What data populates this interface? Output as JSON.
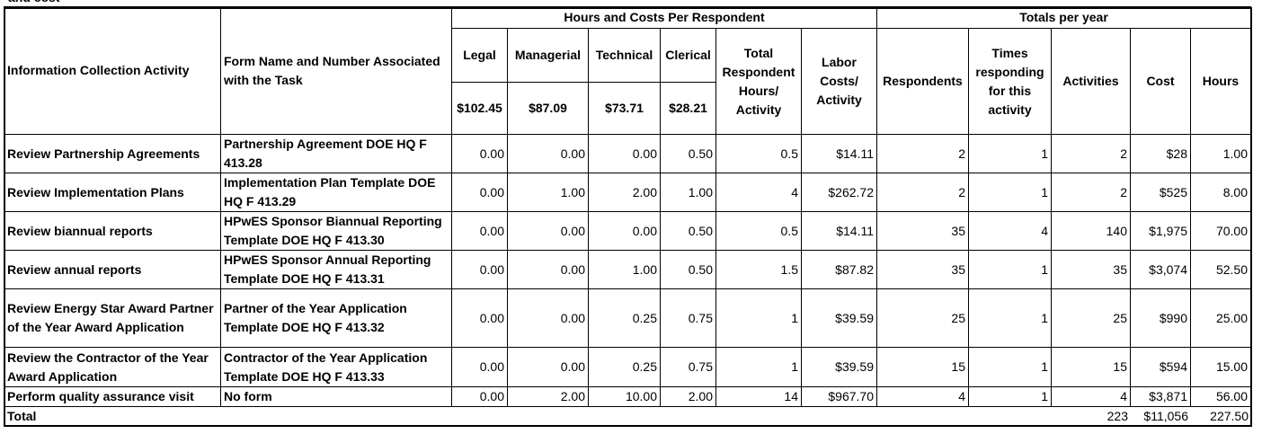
{
  "caption": "and cost",
  "header": {
    "group_hours": "Hours and Costs Per Respondent",
    "group_totals": "Totals per year",
    "columns": [
      "Information Collection Activity",
      "Form Name and Number Associated with the Task",
      "Legal",
      "Managerial",
      "Technical",
      "Clerical",
      "Total Respondent Hours/ Activity",
      "Labor Costs/ Activity",
      "Respondents",
      "Times responding for this activity",
      "Activities",
      "Cost",
      "Hours"
    ],
    "rates": [
      "$102.45",
      "$87.09",
      "$73.71",
      "$28.21"
    ]
  },
  "table": {
    "rows": [
      [
        "Review Partnership Agreements",
        "Partnership Agreement  DOE HQ F 413.28",
        "0.00",
        "0.00",
        "0.00",
        "0.50",
        "0.5",
        "$14.11",
        "2",
        "1",
        "2",
        "$28",
        "1.00"
      ],
      [
        "Review Implementation Plans",
        "Implementation Plan Template  DOE HQ F 413.29",
        "0.00",
        "1.00",
        "2.00",
        "1.00",
        "4",
        "$262.72",
        "2",
        "1",
        "2",
        "$525",
        "8.00"
      ],
      [
        "Review biannual reports",
        "HPwES Sponsor Biannual Reporting Template  DOE HQ F 413.30",
        "0.00",
        "0.00",
        "0.00",
        "0.50",
        "0.5",
        "$14.11",
        "35",
        "4",
        "140",
        "$1,975",
        "70.00"
      ],
      [
        "Review annual reports",
        "HPwES Sponsor Annual Reporting Template  DOE HQ F 413.31",
        "0.00",
        "0.00",
        "1.00",
        "0.50",
        "1.5",
        "$87.82",
        "35",
        "1",
        "35",
        "$3,074",
        "52.50"
      ],
      [
        "Review  Energy Star Award Partner of the Year Award Application",
        "Partner of the Year Application Template  DOE HQ F 413.32",
        "0.00",
        "0.00",
        "0.25",
        "0.75",
        "1",
        "$39.59",
        "25",
        "1",
        "25",
        "$990",
        "25.00"
      ],
      [
        "Review  the Contractor of the Year Award Application",
        "Contractor of the Year Application Template  DOE HQ F 413.33",
        "0.00",
        "0.00",
        "0.25",
        "0.75",
        "1",
        "$39.59",
        "15",
        "1",
        "15",
        "$594",
        "15.00"
      ],
      [
        "Perform quality assurance visit",
        "No form",
        "0.00",
        "2.00",
        "10.00",
        "2.00",
        "14",
        "$967.70",
        "4",
        "1",
        "4",
        "$3,871",
        "56.00"
      ]
    ]
  },
  "total": {
    "label": "Total",
    "activities": "223",
    "cost": "$11,056",
    "hours": "227.50"
  }
}
